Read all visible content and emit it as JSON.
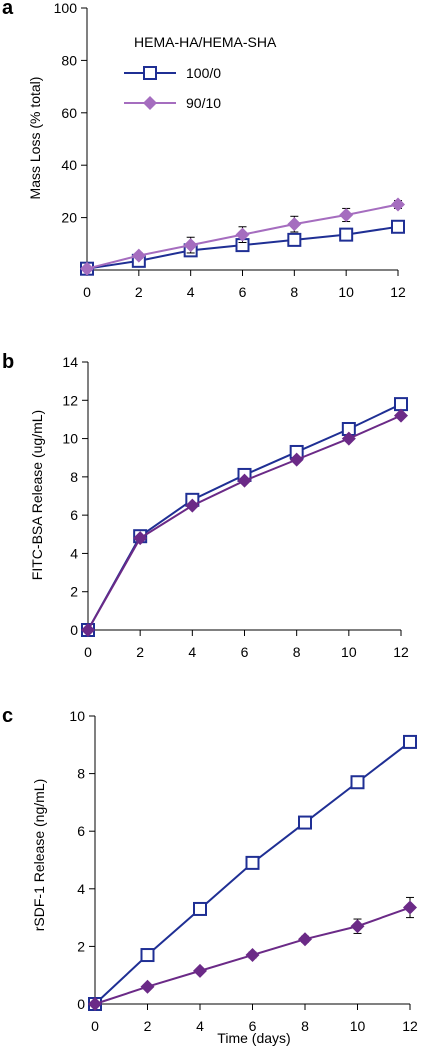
{
  "colors": {
    "s1": "#1f2f94",
    "s2_a": "#a56dbf",
    "s2": "#6b2a87"
  },
  "chart_data": [
    {
      "panel_label": "a",
      "type": "line",
      "ylabel": "Mass Loss (% total)",
      "xlabel": "",
      "ylim": [
        0,
        100
      ],
      "yticks": [
        20,
        40,
        60,
        80,
        100
      ],
      "xticks": [
        0,
        2,
        4,
        6,
        8,
        10,
        12
      ],
      "legend_title": "HEMA-HA/HEMA-SHA",
      "x": [
        0,
        2,
        4,
        6,
        8,
        10,
        12
      ],
      "series": [
        {
          "name": "100/0",
          "marker": "square",
          "values": [
            0.5,
            3.5,
            7.5,
            9.5,
            11.5,
            13.5,
            16.5
          ],
          "err": [
            0.5,
            1,
            1,
            1,
            1.5,
            1.5,
            1
          ]
        },
        {
          "name": "90/10",
          "marker": "diamond",
          "values": [
            0.5,
            5.5,
            9.5,
            13.5,
            17.5,
            21,
            25
          ],
          "err": [
            0.5,
            1,
            3,
            3,
            3,
            2.5,
            1.5
          ]
        }
      ]
    },
    {
      "panel_label": "b",
      "type": "line",
      "ylabel": "FITC-BSA Release (ug/mL)",
      "xlabel": "",
      "ylim": [
        0,
        14
      ],
      "yticks": [
        0,
        2,
        4,
        6,
        8,
        10,
        12,
        14
      ],
      "xticks": [
        0,
        2,
        4,
        6,
        8,
        10,
        12
      ],
      "x": [
        0,
        2,
        4,
        6,
        8,
        10,
        12
      ],
      "series": [
        {
          "marker": "square",
          "values": [
            0,
            4.9,
            6.8,
            8.1,
            9.3,
            10.5,
            11.8
          ],
          "err": [
            0,
            0,
            0,
            0,
            0,
            0,
            0
          ]
        },
        {
          "marker": "diamond",
          "values": [
            0,
            4.8,
            6.5,
            7.8,
            8.9,
            10,
            11.2
          ],
          "err": [
            0,
            0,
            0,
            0,
            0,
            0,
            0
          ]
        }
      ]
    },
    {
      "panel_label": "c",
      "type": "line",
      "ylabel": "rSDF-1 Release (ng/mL)",
      "xlabel": "Time (days)",
      "ylim": [
        0,
        10
      ],
      "yticks": [
        0,
        2,
        4,
        6,
        8,
        10
      ],
      "xticks": [
        0,
        2,
        4,
        6,
        8,
        10,
        12
      ],
      "x": [
        0,
        2,
        4,
        6,
        8,
        10,
        12
      ],
      "series": [
        {
          "marker": "square",
          "values": [
            0,
            1.7,
            3.3,
            4.9,
            6.3,
            7.7,
            9.1
          ],
          "err": [
            0,
            0,
            0,
            0,
            0,
            0.15,
            0.2
          ]
        },
        {
          "marker": "diamond",
          "values": [
            0,
            0.6,
            1.15,
            1.7,
            2.25,
            2.7,
            3.35
          ],
          "err": [
            0,
            0,
            0,
            0.1,
            0.1,
            0.25,
            0.35
          ]
        }
      ]
    }
  ]
}
